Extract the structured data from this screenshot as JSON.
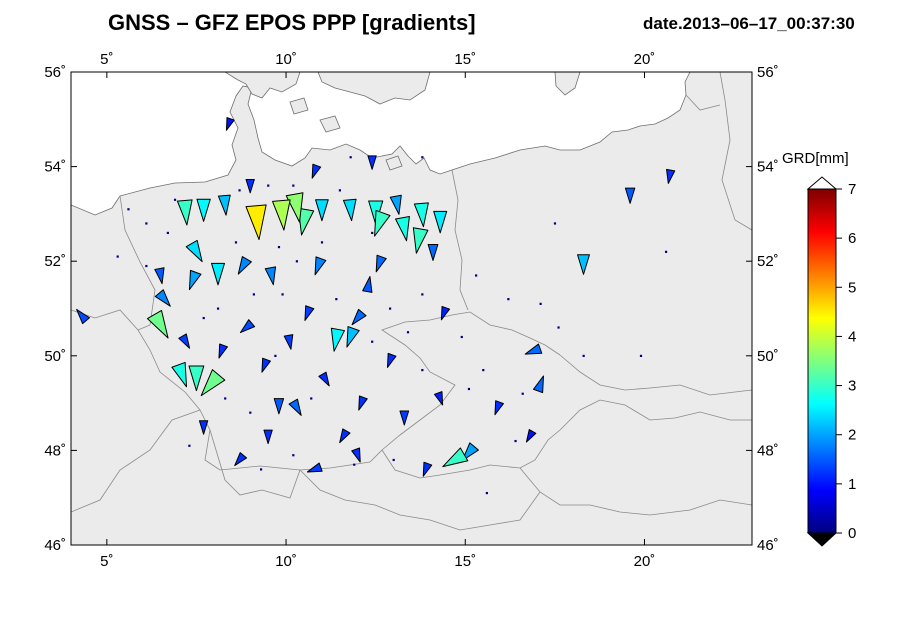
{
  "header": {
    "title": "GNSS  –  GFZ EPOS PPP [gradients]",
    "date": "date.2013–06–17_00:37:30"
  },
  "map": {
    "lon_range": [
      4,
      23
    ],
    "lat_range": [
      46,
      56
    ],
    "lon_ticks": [
      {
        "value": 5,
        "label": "5˚"
      },
      {
        "value": 10,
        "label": "10˚"
      },
      {
        "value": 15,
        "label": "15˚"
      },
      {
        "value": 20,
        "label": "20˚"
      }
    ],
    "lat_ticks": [
      {
        "value": 46,
        "label": "46˚"
      },
      {
        "value": 48,
        "label": "48˚"
      },
      {
        "value": 50,
        "label": "50˚"
      },
      {
        "value": 52,
        "label": "52˚"
      },
      {
        "value": 54,
        "label": "54˚"
      },
      {
        "value": 56,
        "label": "56˚"
      }
    ],
    "land_color": "#ebebeb",
    "sea_color": "#ffffff"
  },
  "colorbar": {
    "title": "GRD[mm]",
    "min": 0,
    "max": 7,
    "ticks": [
      {
        "value": 0,
        "label": "0"
      },
      {
        "value": 1,
        "label": "1"
      },
      {
        "value": 2,
        "label": "2"
      },
      {
        "value": 3,
        "label": "3"
      },
      {
        "value": 4,
        "label": "4"
      },
      {
        "value": 5,
        "label": "5"
      },
      {
        "value": 6,
        "label": "6"
      },
      {
        "value": 7,
        "label": "7"
      }
    ],
    "colormap": [
      "#00007f",
      "#0000ff",
      "#007fff",
      "#00ffff",
      "#7fff7f",
      "#ffff00",
      "#ff7f00",
      "#ff0000",
      "#7f0000"
    ]
  },
  "stations": [
    {
      "lon": 9.2,
      "lat": 52.85,
      "mag": 4.5,
      "dir": 175
    },
    {
      "lon": 9.9,
      "lat": 53.0,
      "mag": 3.8,
      "dir": 175
    },
    {
      "lon": 10.3,
      "lat": 53.15,
      "mag": 3.6,
      "dir": 170
    },
    {
      "lon": 10.5,
      "lat": 52.85,
      "mag": 3.2,
      "dir": 190
    },
    {
      "lon": 7.2,
      "lat": 53.05,
      "mag": 3.0,
      "dir": 175
    },
    {
      "lon": 7.7,
      "lat": 53.1,
      "mag": 2.6,
      "dir": 180
    },
    {
      "lon": 8.3,
      "lat": 53.2,
      "mag": 2.2,
      "dir": 175
    },
    {
      "lon": 11.0,
      "lat": 53.1,
      "mag": 2.4,
      "dir": 180
    },
    {
      "lon": 11.8,
      "lat": 53.1,
      "mag": 2.4,
      "dir": 175
    },
    {
      "lon": 12.5,
      "lat": 53.05,
      "mag": 2.8,
      "dir": 180
    },
    {
      "lon": 12.6,
      "lat": 52.8,
      "mag": 3.0,
      "dir": 200
    },
    {
      "lon": 13.3,
      "lat": 52.7,
      "mag": 2.8,
      "dir": 170
    },
    {
      "lon": 13.8,
      "lat": 53.0,
      "mag": 2.8,
      "dir": 175
    },
    {
      "lon": 13.7,
      "lat": 52.45,
      "mag": 3.0,
      "dir": 190
    },
    {
      "lon": 14.3,
      "lat": 52.85,
      "mag": 2.5,
      "dir": 180
    },
    {
      "lon": 13.1,
      "lat": 53.2,
      "mag": 2.0,
      "dir": 170
    },
    {
      "lon": 7.5,
      "lat": 52.2,
      "mag": 2.4,
      "dir": 150
    },
    {
      "lon": 8.1,
      "lat": 51.75,
      "mag": 2.5,
      "dir": 180
    },
    {
      "lon": 7.4,
      "lat": 51.6,
      "mag": 2.0,
      "dir": 200
    },
    {
      "lon": 8.8,
      "lat": 51.9,
      "mag": 1.8,
      "dir": 210
    },
    {
      "lon": 9.6,
      "lat": 51.7,
      "mag": 1.8,
      "dir": 170
    },
    {
      "lon": 10.9,
      "lat": 51.9,
      "mag": 1.8,
      "dir": 200
    },
    {
      "lon": 12.6,
      "lat": 51.95,
      "mag": 1.6,
      "dir": 200
    },
    {
      "lon": 14.1,
      "lat": 52.2,
      "mag": 1.6,
      "dir": 180
    },
    {
      "lon": 12.3,
      "lat": 51.5,
      "mag": 1.5,
      "dir": 10
    },
    {
      "lon": 6.5,
      "lat": 50.65,
      "mag": 3.4,
      "dir": 150
    },
    {
      "lon": 6.6,
      "lat": 51.2,
      "mag": 1.8,
      "dir": 140
    },
    {
      "lon": 7.1,
      "lat": 49.6,
      "mag": 2.8,
      "dir": 160
    },
    {
      "lon": 7.5,
      "lat": 49.55,
      "mag": 3.0,
      "dir": 180
    },
    {
      "lon": 7.9,
      "lat": 49.4,
      "mag": 3.4,
      "dir": 220
    },
    {
      "lon": 11.4,
      "lat": 50.35,
      "mag": 2.6,
      "dir": 190
    },
    {
      "lon": 11.8,
      "lat": 50.4,
      "mag": 2.2,
      "dir": 200
    },
    {
      "lon": 12.0,
      "lat": 50.8,
      "mag": 1.6,
      "dir": 220
    },
    {
      "lon": 10.3,
      "lat": 48.9,
      "mag": 1.6,
      "dir": 150
    },
    {
      "lon": 9.8,
      "lat": 48.95,
      "mag": 1.5,
      "dir": 180
    },
    {
      "lon": 14.7,
      "lat": 47.8,
      "mag": 3.0,
      "dir": 240
    },
    {
      "lon": 15.1,
      "lat": 47.95,
      "mag": 2.0,
      "dir": 220
    },
    {
      "lon": 18.3,
      "lat": 51.95,
      "mag": 2.2,
      "dir": 180
    },
    {
      "lon": 16.9,
      "lat": 50.1,
      "mag": 1.6,
      "dir": 250
    },
    {
      "lon": 17.1,
      "lat": 49.4,
      "mag": 1.6,
      "dir": 20
    },
    {
      "lon": 19.6,
      "lat": 53.4,
      "mag": 1.5,
      "dir": 180
    },
    {
      "lon": 20.7,
      "lat": 53.8,
      "mag": 1.2,
      "dir": 190
    },
    {
      "lon": 4.3,
      "lat": 50.85,
      "mag": 1.4,
      "dir": 320
    },
    {
      "lon": 6.5,
      "lat": 51.7,
      "mag": 1.5,
      "dir": 170
    },
    {
      "lon": 7.2,
      "lat": 50.3,
      "mag": 1.3,
      "dir": 150
    },
    {
      "lon": 8.9,
      "lat": 50.6,
      "mag": 1.4,
      "dir": 230
    },
    {
      "lon": 10.1,
      "lat": 50.3,
      "mag": 1.3,
      "dir": 170
    },
    {
      "lon": 10.6,
      "lat": 50.9,
      "mag": 1.3,
      "dir": 200
    },
    {
      "lon": 9.4,
      "lat": 49.8,
      "mag": 1.2,
      "dir": 200
    },
    {
      "lon": 11.1,
      "lat": 49.5,
      "mag": 1.2,
      "dir": 150
    },
    {
      "lon": 12.1,
      "lat": 49.0,
      "mag": 1.2,
      "dir": 200
    },
    {
      "lon": 13.3,
      "lat": 48.7,
      "mag": 1.3,
      "dir": 180
    },
    {
      "lon": 11.6,
      "lat": 48.3,
      "mag": 1.2,
      "dir": 210
    },
    {
      "lon": 10.8,
      "lat": 47.6,
      "mag": 1.3,
      "dir": 250
    },
    {
      "lon": 8.7,
      "lat": 47.8,
      "mag": 1.2,
      "dir": 220
    },
    {
      "lon": 7.7,
      "lat": 48.5,
      "mag": 1.2,
      "dir": 180
    },
    {
      "lon": 13.9,
      "lat": 47.6,
      "mag": 1.2,
      "dir": 200
    },
    {
      "lon": 15.9,
      "lat": 48.9,
      "mag": 1.2,
      "dir": 200
    },
    {
      "lon": 9.0,
      "lat": 53.6,
      "mag": 1.2,
      "dir": 180
    },
    {
      "lon": 10.8,
      "lat": 53.9,
      "mag": 1.2,
      "dir": 200
    },
    {
      "lon": 12.4,
      "lat": 54.1,
      "mag": 1.2,
      "dir": 180
    },
    {
      "lon": 8.4,
      "lat": 54.9,
      "mag": 1.0,
      "dir": 200
    },
    {
      "lon": 12.9,
      "lat": 49.9,
      "mag": 1.2,
      "dir": 200
    },
    {
      "lon": 14.4,
      "lat": 50.9,
      "mag": 1.1,
      "dir": 200
    },
    {
      "lon": 8.2,
      "lat": 50.1,
      "mag": 1.2,
      "dir": 200
    },
    {
      "lon": 9.5,
      "lat": 48.3,
      "mag": 1.2,
      "dir": 180
    },
    {
      "lon": 14.3,
      "lat": 49.1,
      "mag": 1.1,
      "dir": 160
    },
    {
      "lon": 16.8,
      "lat": 48.3,
      "mag": 1.0,
      "dir": 210
    },
    {
      "lon": 12.0,
      "lat": 47.9,
      "mag": 1.2,
      "dir": 160
    }
  ],
  "small_stations": [
    [
      5.6,
      53.1
    ],
    [
      6.1,
      52.8
    ],
    [
      6.9,
      53.3
    ],
    [
      6.7,
      52.6
    ],
    [
      8.7,
      53.5
    ],
    [
      9.5,
      53.6
    ],
    [
      10.2,
      53.6
    ],
    [
      11.5,
      53.5
    ],
    [
      11.0,
      52.4
    ],
    [
      9.8,
      52.3
    ],
    [
      8.6,
      52.4
    ],
    [
      10.3,
      52.0
    ],
    [
      9.1,
      51.3
    ],
    [
      8.1,
      51.0
    ],
    [
      9.9,
      51.3
    ],
    [
      11.4,
      51.2
    ],
    [
      12.9,
      51.0
    ],
    [
      13.8,
      51.3
    ],
    [
      7.7,
      50.8
    ],
    [
      9.7,
      50.0
    ],
    [
      12.4,
      50.3
    ],
    [
      13.8,
      49.7
    ],
    [
      10.7,
      49.1
    ],
    [
      8.3,
      49.1
    ],
    [
      9.0,
      48.8
    ],
    [
      11.9,
      47.7
    ],
    [
      13.0,
      47.8
    ],
    [
      15.5,
      49.7
    ],
    [
      16.6,
      49.2
    ],
    [
      17.6,
      50.6
    ],
    [
      18.3,
      50.0
    ],
    [
      16.2,
      51.2
    ],
    [
      15.3,
      51.7
    ],
    [
      17.5,
      52.8
    ],
    [
      20.6,
      52.2
    ],
    [
      19.9,
      50.0
    ],
    [
      13.4,
      50.5
    ],
    [
      14.9,
      50.4
    ],
    [
      10.2,
      47.9
    ],
    [
      7.3,
      48.1
    ],
    [
      12.4,
      52.6
    ],
    [
      6.1,
      51.9
    ],
    [
      5.3,
      52.1
    ],
    [
      11.8,
      54.2
    ],
    [
      13.8,
      54.2
    ],
    [
      15.6,
      47.1
    ],
    [
      16.4,
      48.2
    ],
    [
      9.3,
      47.6
    ],
    [
      15.1,
      49.3
    ],
    [
      17.1,
      51.1
    ]
  ]
}
